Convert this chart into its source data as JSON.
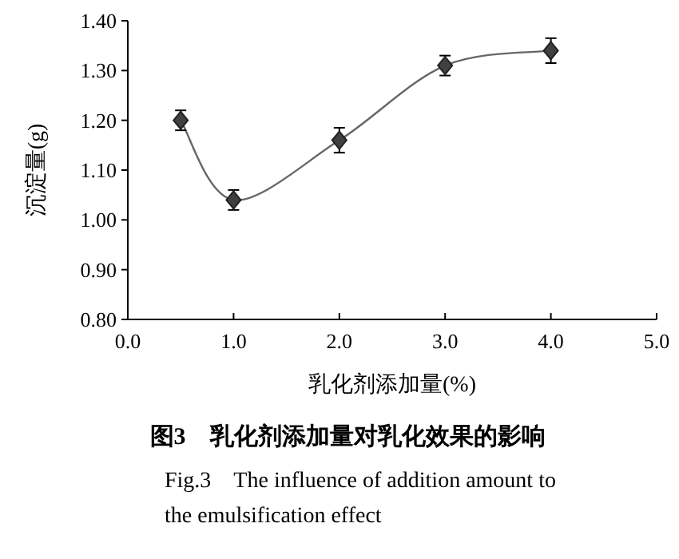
{
  "chart_data": {
    "type": "line",
    "title": "图3　乳化剂添加量对乳化效果的影响",
    "subtitle": "Fig.3　The influence of addition amount to the emulsification effect",
    "xlabel": "乳化剂添加量(%)",
    "ylabel": "沉淀量(g)",
    "x": [
      0.5,
      1.0,
      2.0,
      3.0,
      4.0
    ],
    "values": [
      1.2,
      1.04,
      1.16,
      1.31,
      1.34
    ],
    "errors": [
      0.02,
      0.02,
      0.025,
      0.02,
      0.025
    ],
    "color": "#404040",
    "marker": "diamond",
    "line_style": "solid",
    "grid": false,
    "xlim": [
      0,
      5
    ],
    "xticks": [
      {
        "value": 0,
        "label": "0.0"
      },
      {
        "value": 1,
        "label": "1.0"
      },
      {
        "value": 2,
        "label": "2.0"
      },
      {
        "value": 3,
        "label": "3.0"
      },
      {
        "value": 4,
        "label": "4.0"
      },
      {
        "value": 5,
        "label": "5.0"
      }
    ],
    "ylim": [
      0.8,
      1.4
    ],
    "yticks": [
      {
        "value": 0.8,
        "label": "0.80"
      },
      {
        "value": 0.9,
        "label": "0.90"
      },
      {
        "value": 1.0,
        "label": "1.00"
      },
      {
        "value": 1.1,
        "label": "1.10"
      },
      {
        "value": 1.2,
        "label": "1.20"
      },
      {
        "value": 1.3,
        "label": "1.30"
      },
      {
        "value": 1.4,
        "label": "1.40"
      }
    ]
  }
}
